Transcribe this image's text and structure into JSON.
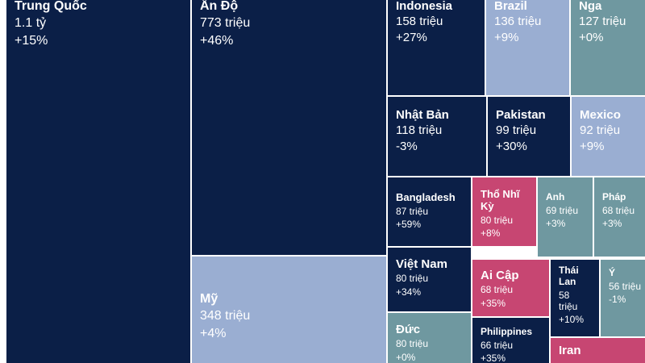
{
  "colors": {
    "navy": "#0b1f47",
    "lightblue": "#9aaed2",
    "teal": "#6f98a0",
    "pink": "#c74672"
  },
  "chart_data": {
    "type": "treemap",
    "title": "",
    "tiles": [
      {
        "name": "Trung Quốc",
        "value": "1.1 tỷ",
        "change": "+15%",
        "color": "navy"
      },
      {
        "name": "Ấn Độ",
        "value": "773 triệu",
        "change": "+46%",
        "color": "navy"
      },
      {
        "name": "Mỹ",
        "value": "348 triệu",
        "change": "+4%",
        "color": "lightblue"
      },
      {
        "name": "Indonesia",
        "value": "158 triệu",
        "change": "+27%",
        "color": "navy"
      },
      {
        "name": "Brazil",
        "value": "136 triệu",
        "change": "+9%",
        "color": "lightblue"
      },
      {
        "name": "Nga",
        "value": "127 triệu",
        "change": "+0%",
        "color": "teal"
      },
      {
        "name": "Nhật Bản",
        "value": "118 triệu",
        "change": "-3%",
        "color": "navy"
      },
      {
        "name": "Pakistan",
        "value": "99 triệu",
        "change": "+30%",
        "color": "navy"
      },
      {
        "name": "Mexico",
        "value": "92 triệu",
        "change": "+9%",
        "color": "lightblue"
      },
      {
        "name": "Bangladesh",
        "value": "87 triệu",
        "change": "+59%",
        "color": "navy"
      },
      {
        "name": "Thổ Nhĩ Kỳ",
        "value": "80 triệu",
        "change": "+8%",
        "color": "pink"
      },
      {
        "name": "Anh",
        "value": "69 triệu",
        "change": "+3%",
        "color": "teal"
      },
      {
        "name": "Pháp",
        "value": "68 triệu",
        "change": "+3%",
        "color": "teal"
      },
      {
        "name": "Việt Nam",
        "value": "80 triệu",
        "change": "+34%",
        "color": "navy"
      },
      {
        "name": "Ai Cập",
        "value": "68 triệu",
        "change": "+35%",
        "color": "pink"
      },
      {
        "name": "Thái Lan",
        "value": "58 triệu",
        "change": "+10%",
        "color": "navy"
      },
      {
        "name": "Ý",
        "value": "56 triệu",
        "change": "-1%",
        "color": "teal"
      },
      {
        "name": "Đức",
        "value": "80 triệu",
        "change": "+0%",
        "color": "teal"
      },
      {
        "name": "Philippines",
        "value": "66 triệu",
        "change": "+35%",
        "color": "navy"
      },
      {
        "name": "Iran",
        "value": "",
        "change": "",
        "color": "pink"
      }
    ]
  }
}
